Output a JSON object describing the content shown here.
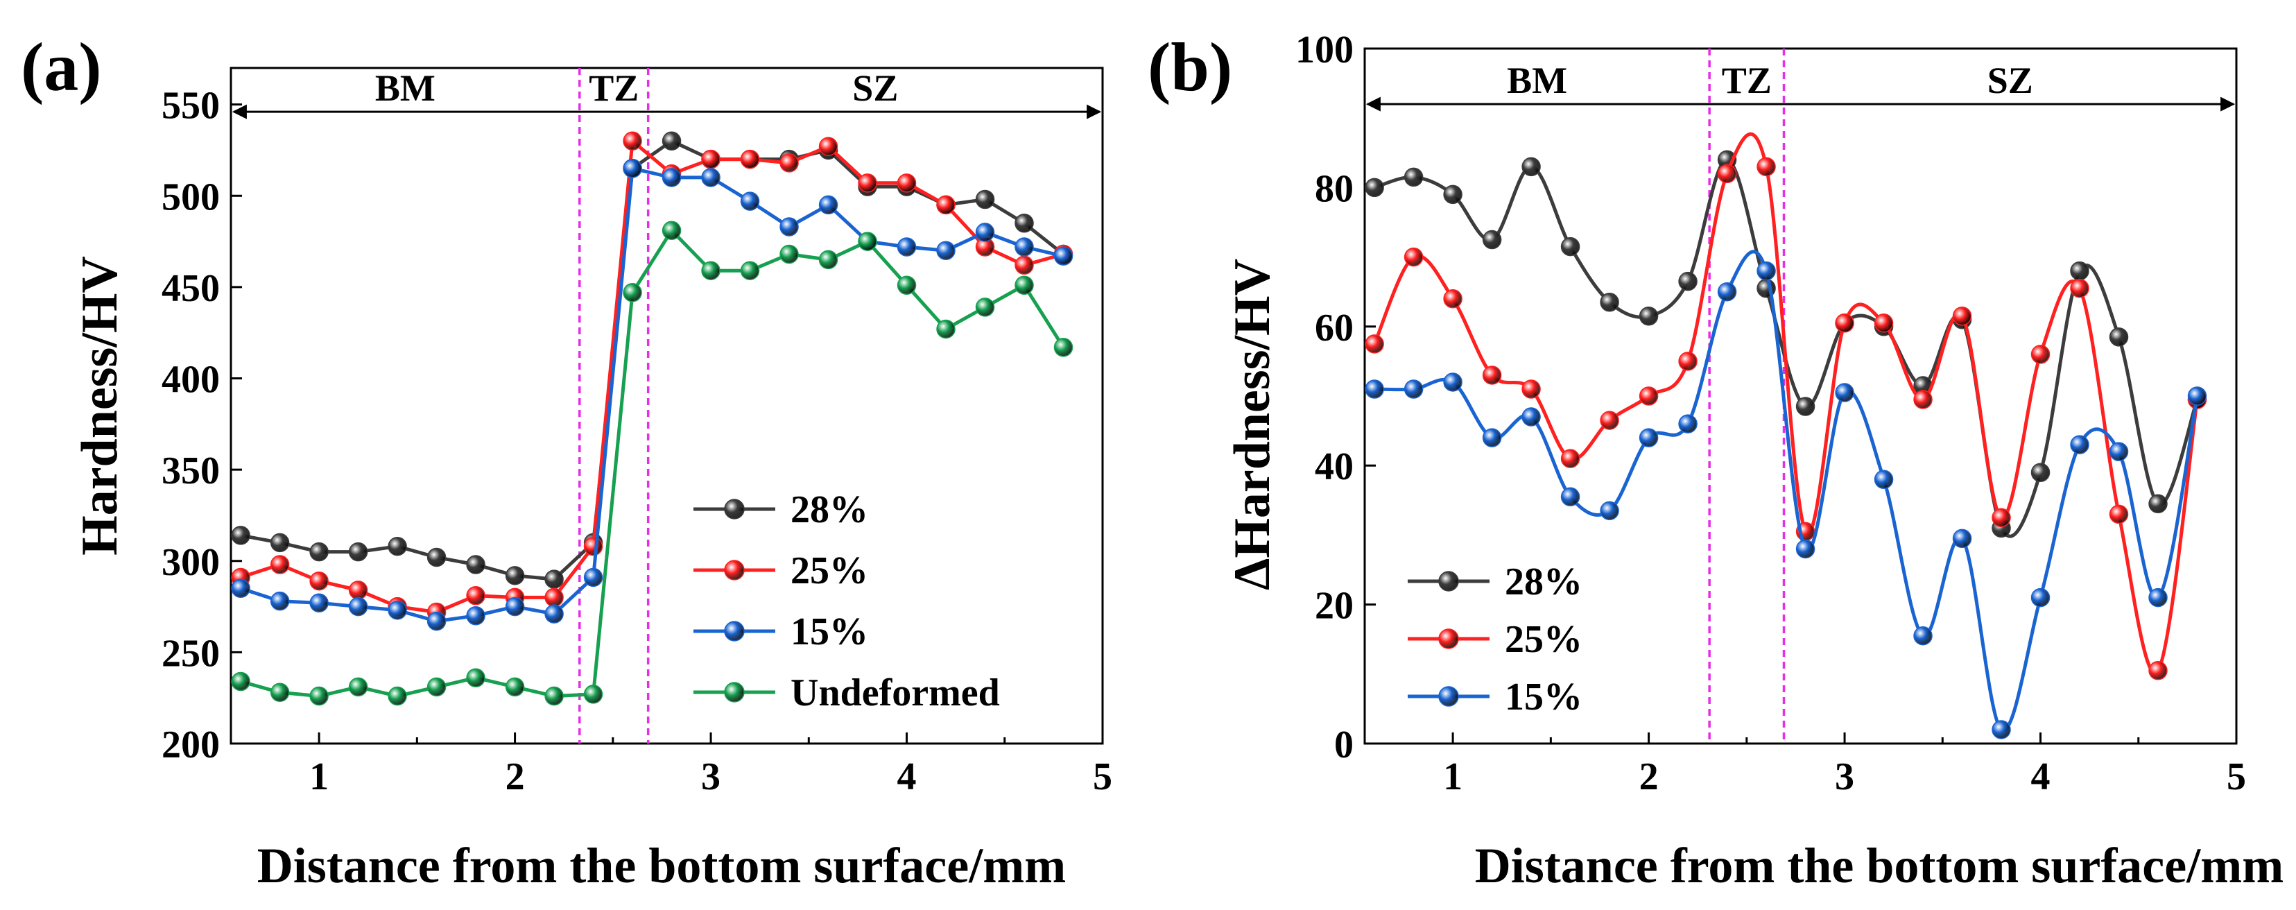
{
  "chart_data": [
    {
      "panel_label": "(a)",
      "type": "line",
      "xlabel": "Distance from the bottom surface/mm",
      "ylabel": "Hardness/HV",
      "xlim": [
        0.55,
        5.0
      ],
      "ylim": [
        200,
        570
      ],
      "xticks": [
        "1",
        "2",
        "3",
        "4",
        "5"
      ],
      "xtick_values": [
        1,
        2,
        3,
        4,
        5
      ],
      "yticks": [
        "200",
        "250",
        "300",
        "350",
        "400",
        "450",
        "500",
        "550"
      ],
      "ytick_values": [
        200,
        250,
        300,
        350,
        400,
        450,
        500,
        550
      ],
      "smooth": false,
      "regions": [
        {
          "label": "BM",
          "from": 0.55,
          "to": 2.33
        },
        {
          "label": "TZ",
          "from": 2.33,
          "to": 2.68
        },
        {
          "label": "SZ",
          "from": 2.68,
          "to": 5.0
        }
      ],
      "boundaries": [
        2.33,
        2.68
      ],
      "arrow_y": 546,
      "legend_position": "lower-right",
      "series": [
        {
          "name": "28%",
          "color": "#3c3c3c",
          "x": [
            0.6,
            0.8,
            1.0,
            1.2,
            1.4,
            1.6,
            1.8,
            2.0,
            2.2,
            2.4,
            2.6,
            2.8,
            3.0,
            3.2,
            3.4,
            3.6,
            3.8,
            4.0,
            4.2,
            4.4,
            4.6,
            4.8
          ],
          "y": [
            314,
            310,
            305,
            305,
            308,
            302,
            298,
            292,
            290,
            310,
            515,
            530,
            520,
            520,
            520,
            525,
            505,
            505,
            495,
            498,
            485,
            468
          ]
        },
        {
          "name": "25%",
          "color": "#ff2020",
          "x": [
            0.6,
            0.8,
            1.0,
            1.2,
            1.4,
            1.6,
            1.8,
            2.0,
            2.2,
            2.4,
            2.6,
            2.8,
            3.0,
            3.2,
            3.4,
            3.6,
            3.8,
            4.0,
            4.2,
            4.4,
            4.6,
            4.8
          ],
          "y": [
            291,
            298,
            289,
            284,
            275,
            272,
            281,
            280,
            280,
            308,
            530,
            512,
            520,
            520,
            518,
            527,
            507,
            507,
            495,
            472,
            462,
            468
          ]
        },
        {
          "name": "15%",
          "color": "#1a64d2",
          "x": [
            0.6,
            0.8,
            1.0,
            1.2,
            1.4,
            1.6,
            1.8,
            2.0,
            2.2,
            2.4,
            2.6,
            2.8,
            3.0,
            3.2,
            3.4,
            3.6,
            3.8,
            4.0,
            4.2,
            4.4,
            4.6,
            4.8
          ],
          "y": [
            285,
            278,
            277,
            275,
            273,
            267,
            270,
            275,
            271,
            291,
            515,
            510,
            510,
            497,
            483,
            495,
            475,
            472,
            470,
            480,
            472,
            467
          ]
        },
        {
          "name": "Undeformed",
          "color": "#17a050",
          "x": [
            0.6,
            0.8,
            1.0,
            1.2,
            1.4,
            1.6,
            1.8,
            2.0,
            2.2,
            2.4,
            2.6,
            2.8,
            3.0,
            3.2,
            3.4,
            3.6,
            3.8,
            4.0,
            4.2,
            4.4,
            4.6,
            4.8
          ],
          "y": [
            234,
            228,
            226,
            231,
            226,
            231,
            236,
            231,
            226,
            227,
            447,
            481,
            459,
            459,
            468,
            465,
            475,
            451,
            427,
            439,
            451,
            417
          ]
        }
      ]
    },
    {
      "panel_label": "(b)",
      "type": "line",
      "xlabel": "Distance from the bottom surface/mm",
      "ylabel": "ΔHardness/HV",
      "xlim": [
        0.55,
        5.0
      ],
      "ylim": [
        0,
        100
      ],
      "xticks": [
        "1",
        "2",
        "3",
        "4",
        "5"
      ],
      "xtick_values": [
        1,
        2,
        3,
        4,
        5
      ],
      "yticks": [
        "0",
        "20",
        "40",
        "60",
        "80",
        "100"
      ],
      "ytick_values": [
        0,
        20,
        40,
        60,
        80,
        100
      ],
      "smooth": true,
      "regions": [
        {
          "label": "BM",
          "from": 0.55,
          "to": 2.31
        },
        {
          "label": "TZ",
          "from": 2.31,
          "to": 2.69
        },
        {
          "label": "SZ",
          "from": 2.69,
          "to": 5.0
        }
      ],
      "boundaries": [
        2.31,
        2.69
      ],
      "arrow_y": 92,
      "legend_position": "lower-left",
      "series": [
        {
          "name": "28%",
          "color": "#3c3c3c",
          "x": [
            0.6,
            0.8,
            1.0,
            1.2,
            1.4,
            1.6,
            1.8,
            2.0,
            2.2,
            2.4,
            2.6,
            2.8,
            3.0,
            3.2,
            3.4,
            3.6,
            3.8,
            4.0,
            4.2,
            4.4,
            4.6,
            4.8
          ],
          "y": [
            80,
            81.5,
            79,
            72.5,
            83,
            71.5,
            63.5,
            61.5,
            66.5,
            84,
            65.5,
            48.5,
            60.5,
            60,
            51.5,
            61,
            31,
            39,
            68,
            58.5,
            34.5,
            49.5
          ]
        },
        {
          "name": "25%",
          "color": "#ff2020",
          "x": [
            0.6,
            0.8,
            1.0,
            1.2,
            1.4,
            1.6,
            1.8,
            2.0,
            2.2,
            2.4,
            2.6,
            2.8,
            3.0,
            3.2,
            3.4,
            3.6,
            3.8,
            4.0,
            4.2,
            4.4,
            4.6,
            4.8
          ],
          "y": [
            57.5,
            70,
            64,
            53,
            51,
            41,
            46.5,
            50,
            55,
            82,
            83,
            30.5,
            60.5,
            60.5,
            49.5,
            61.5,
            32.5,
            56,
            65.5,
            33,
            10.5,
            49.5
          ]
        },
        {
          "name": "15%",
          "color": "#1a64d2",
          "x": [
            0.6,
            0.8,
            1.0,
            1.2,
            1.4,
            1.6,
            1.8,
            2.0,
            2.2,
            2.4,
            2.6,
            2.8,
            3.0,
            3.2,
            3.4,
            3.6,
            3.8,
            4.0,
            4.2,
            4.4,
            4.6,
            4.8
          ],
          "y": [
            51,
            51,
            52,
            44,
            47,
            35.5,
            33.5,
            44,
            46,
            65,
            68,
            28,
            50.5,
            38,
            15.5,
            29.5,
            2,
            21,
            43,
            42,
            21,
            50
          ]
        }
      ]
    }
  ]
}
